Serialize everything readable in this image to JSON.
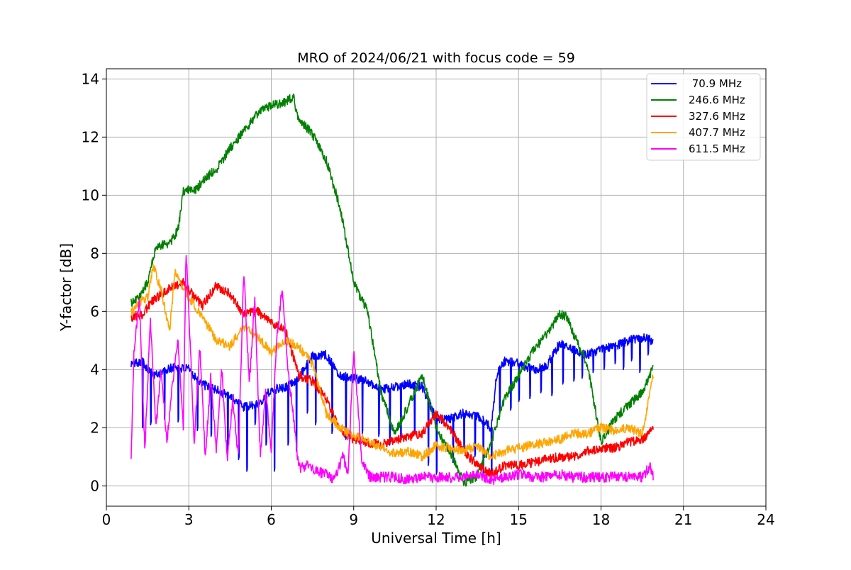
{
  "chart_data": {
    "type": "line",
    "title": "MRO of 2024/06/21 with focus code = 59",
    "xlabel": "Universal Time [h]",
    "ylabel": "Y-factor [dB]",
    "xlim": [
      0,
      24
    ],
    "ylim": [
      -0.7,
      14.35
    ],
    "xticks": [
      "0",
      "3",
      "6",
      "9",
      "12",
      "15",
      "18",
      "21",
      "24"
    ],
    "yticks": [
      "0",
      "2",
      "4",
      "6",
      "8",
      "10",
      "12",
      "14"
    ],
    "grid": true,
    "legend_position": "top-right",
    "series": [
      {
        "name": " 70.9 MHz",
        "color": "#0000ff",
        "x": [
          0.9,
          1.3,
          1.7,
          2.0,
          2.5,
          3.0,
          3.5,
          4.0,
          4.5,
          5.0,
          5.5,
          6.0,
          6.5,
          7.0,
          7.5,
          8.0,
          8.5,
          9.0,
          9.5,
          10.0,
          10.5,
          11.0,
          11.5,
          12.0,
          12.5,
          13.0,
          13.5,
          14.0,
          14.2,
          14.5,
          15.0,
          15.5,
          16.0,
          16.5,
          17.0,
          17.5,
          18.0,
          18.5,
          19.0,
          19.5,
          19.9
        ],
        "values": [
          4.2,
          4.3,
          3.8,
          3.9,
          4.1,
          4.0,
          3.5,
          3.3,
          3.1,
          2.7,
          2.8,
          3.3,
          3.4,
          3.7,
          4.5,
          4.5,
          3.8,
          3.7,
          3.6,
          3.3,
          3.4,
          3.5,
          3.4,
          2.3,
          2.3,
          2.5,
          2.4,
          2.0,
          3.8,
          4.3,
          4.2,
          4.0,
          4.1,
          4.9,
          4.7,
          4.5,
          4.7,
          4.8,
          5.0,
          5.1,
          5.0
        ],
        "dips": [
          [
            1.3,
            2.0
          ],
          [
            1.6,
            2.1
          ],
          [
            2.1,
            2.3
          ],
          [
            2.6,
            2.2
          ],
          [
            3.3,
            1.9
          ],
          [
            3.8,
            1.7
          ],
          [
            4.4,
            1.2
          ],
          [
            4.8,
            0.9
          ],
          [
            5.1,
            0.5
          ],
          [
            5.4,
            2.1
          ],
          [
            5.8,
            1.4
          ],
          [
            6.1,
            0.5
          ],
          [
            6.6,
            1.4
          ],
          [
            6.9,
            1.2
          ],
          [
            7.3,
            2.5
          ],
          [
            7.6,
            2.1
          ],
          [
            8.2,
            1.8
          ],
          [
            8.7,
            1.6
          ],
          [
            9.3,
            1.8
          ],
          [
            9.9,
            1.7
          ],
          [
            10.3,
            1.4
          ],
          [
            10.7,
            1.6
          ],
          [
            11.2,
            1.8
          ],
          [
            11.7,
            0.7
          ],
          [
            12.0,
            0.4
          ],
          [
            12.6,
            0.8
          ],
          [
            13.0,
            1.2
          ],
          [
            13.4,
            1.0
          ],
          [
            13.7,
            0.4
          ],
          [
            14.0,
            0.5
          ],
          [
            14.3,
            2.5
          ],
          [
            14.7,
            2.6
          ],
          [
            15.0,
            2.9
          ],
          [
            15.4,
            3.0
          ],
          [
            15.8,
            3.2
          ],
          [
            16.2,
            3.1
          ],
          [
            16.6,
            3.5
          ],
          [
            17.0,
            3.6
          ],
          [
            17.3,
            3.7
          ],
          [
            17.7,
            3.9
          ],
          [
            18.1,
            4.0
          ],
          [
            18.5,
            4.2
          ],
          [
            18.8,
            4.0
          ],
          [
            19.1,
            4.3
          ],
          [
            19.4,
            3.9
          ],
          [
            19.7,
            4.5
          ]
        ]
      },
      {
        "name": "246.6 MHz",
        "color": "#008000",
        "x": [
          0.9,
          1.2,
          1.5,
          1.8,
          2.0,
          2.3,
          2.6,
          2.8,
          3.0,
          3.3,
          3.5,
          4.0,
          4.5,
          5.0,
          5.5,
          6.0,
          6.5,
          6.8,
          7.0,
          7.5,
          8.0,
          8.5,
          9.0,
          9.5,
          10.0,
          10.5,
          11.0,
          11.5,
          12.0,
          12.5,
          13.0,
          13.5,
          14.0,
          14.5,
          15.0,
          15.5,
          16.0,
          16.5,
          16.8,
          17.0,
          17.5,
          18.0,
          18.5,
          19.0,
          19.5,
          19.9
        ],
        "values": [
          6.3,
          6.5,
          7.0,
          8.2,
          8.3,
          8.3,
          8.8,
          10.1,
          10.2,
          10.2,
          10.5,
          10.9,
          11.6,
          12.2,
          12.8,
          13.1,
          13.2,
          13.4,
          12.6,
          12.1,
          11.2,
          9.6,
          7.0,
          6.0,
          3.2,
          1.8,
          2.8,
          3.8,
          2.0,
          1.2,
          0.1,
          0.3,
          1.5,
          3.0,
          3.8,
          4.6,
          5.2,
          5.9,
          5.8,
          5.2,
          4.2,
          1.5,
          2.3,
          2.8,
          3.2,
          4.1
        ]
      },
      {
        "name": "327.6 MHz",
        "color": "#ff0000",
        "x": [
          0.9,
          1.3,
          1.7,
          2.0,
          2.5,
          2.8,
          3.2,
          3.5,
          4.0,
          4.5,
          5.0,
          5.5,
          6.0,
          6.5,
          7.0,
          7.5,
          8.0,
          8.5,
          9.0,
          9.5,
          10.0,
          10.5,
          11.0,
          11.5,
          12.0,
          12.5,
          13.0,
          13.5,
          14.0,
          14.5,
          15.0,
          15.5,
          16.0,
          16.5,
          17.0,
          17.5,
          18.0,
          18.5,
          19.0,
          19.5,
          19.9
        ],
        "values": [
          5.8,
          5.9,
          6.4,
          6.6,
          6.9,
          7.0,
          6.5,
          6.2,
          6.9,
          6.6,
          5.9,
          6.0,
          5.6,
          5.4,
          3.8,
          3.6,
          3.0,
          1.9,
          1.6,
          1.5,
          1.4,
          1.6,
          1.7,
          1.8,
          2.5,
          2.0,
          1.2,
          0.7,
          0.4,
          0.7,
          0.7,
          0.8,
          0.9,
          1.0,
          1.0,
          1.2,
          1.3,
          1.3,
          1.5,
          1.6,
          2.0
        ]
      },
      {
        "name": "407.7 MHz",
        "color": "#ffa500",
        "x": [
          0.9,
          1.2,
          1.5,
          1.7,
          2.0,
          2.3,
          2.5,
          2.8,
          3.0,
          3.5,
          4.0,
          4.5,
          5.0,
          5.5,
          6.0,
          6.5,
          7.0,
          7.5,
          8.0,
          8.5,
          9.0,
          9.5,
          10.0,
          10.5,
          11.0,
          11.5,
          12.0,
          12.5,
          13.0,
          13.5,
          14.0,
          14.5,
          15.0,
          15.5,
          16.0,
          16.5,
          17.0,
          17.5,
          18.0,
          18.5,
          19.0,
          19.5,
          19.9
        ],
        "values": [
          6.0,
          6.3,
          6.5,
          7.6,
          6.7,
          5.3,
          7.4,
          6.8,
          6.5,
          5.8,
          5.0,
          4.8,
          5.5,
          5.1,
          4.6,
          5.0,
          4.8,
          4.2,
          2.5,
          2.0,
          1.7,
          1.6,
          1.3,
          1.1,
          1.2,
          1.0,
          1.4,
          1.3,
          1.2,
          1.4,
          1.0,
          1.2,
          1.3,
          1.4,
          1.5,
          1.6,
          1.8,
          1.8,
          2.0,
          1.9,
          2.0,
          1.8,
          3.8
        ]
      },
      {
        "name": "611.5 MHz",
        "color": "#ff00ff",
        "x": [
          0.9,
          1.0,
          1.2,
          1.4,
          1.6,
          1.8,
          2.0,
          2.2,
          2.4,
          2.6,
          2.8,
          2.9,
          3.0,
          3.2,
          3.4,
          3.6,
          3.8,
          4.0,
          4.2,
          4.4,
          4.6,
          4.8,
          5.0,
          5.2,
          5.4,
          5.6,
          5.8,
          6.0,
          6.2,
          6.4,
          6.6,
          6.8,
          7.0,
          7.3,
          7.6,
          8.0,
          8.3,
          8.6,
          8.8,
          9.0,
          9.3,
          9.6,
          10.0,
          10.5,
          11.0,
          11.5,
          12.0,
          12.5,
          13.0,
          13.5,
          14.0,
          14.5,
          15.0,
          15.5,
          16.0,
          16.5,
          17.0,
          17.5,
          18.0,
          18.5,
          19.0,
          19.5,
          19.8,
          19.9
        ],
        "values": [
          1.0,
          4.5,
          6.5,
          1.2,
          5.8,
          2.0,
          4.0,
          1.5,
          3.5,
          5.0,
          2.0,
          8.1,
          6.0,
          1.5,
          4.8,
          1.0,
          3.8,
          1.2,
          4.0,
          0.9,
          3.0,
          1.0,
          7.4,
          3.5,
          6.4,
          1.1,
          3.2,
          1.3,
          5.0,
          6.9,
          4.0,
          2.5,
          0.6,
          0.7,
          0.5,
          0.4,
          0.2,
          1.0,
          0.5,
          4.7,
          0.8,
          0.3,
          0.3,
          0.3,
          0.2,
          0.3,
          0.3,
          0.3,
          0.3,
          0.4,
          0.2,
          0.3,
          0.4,
          0.3,
          0.3,
          0.4,
          0.3,
          0.3,
          0.3,
          0.3,
          0.3,
          0.3,
          0.7,
          0.3
        ]
      }
    ]
  }
}
